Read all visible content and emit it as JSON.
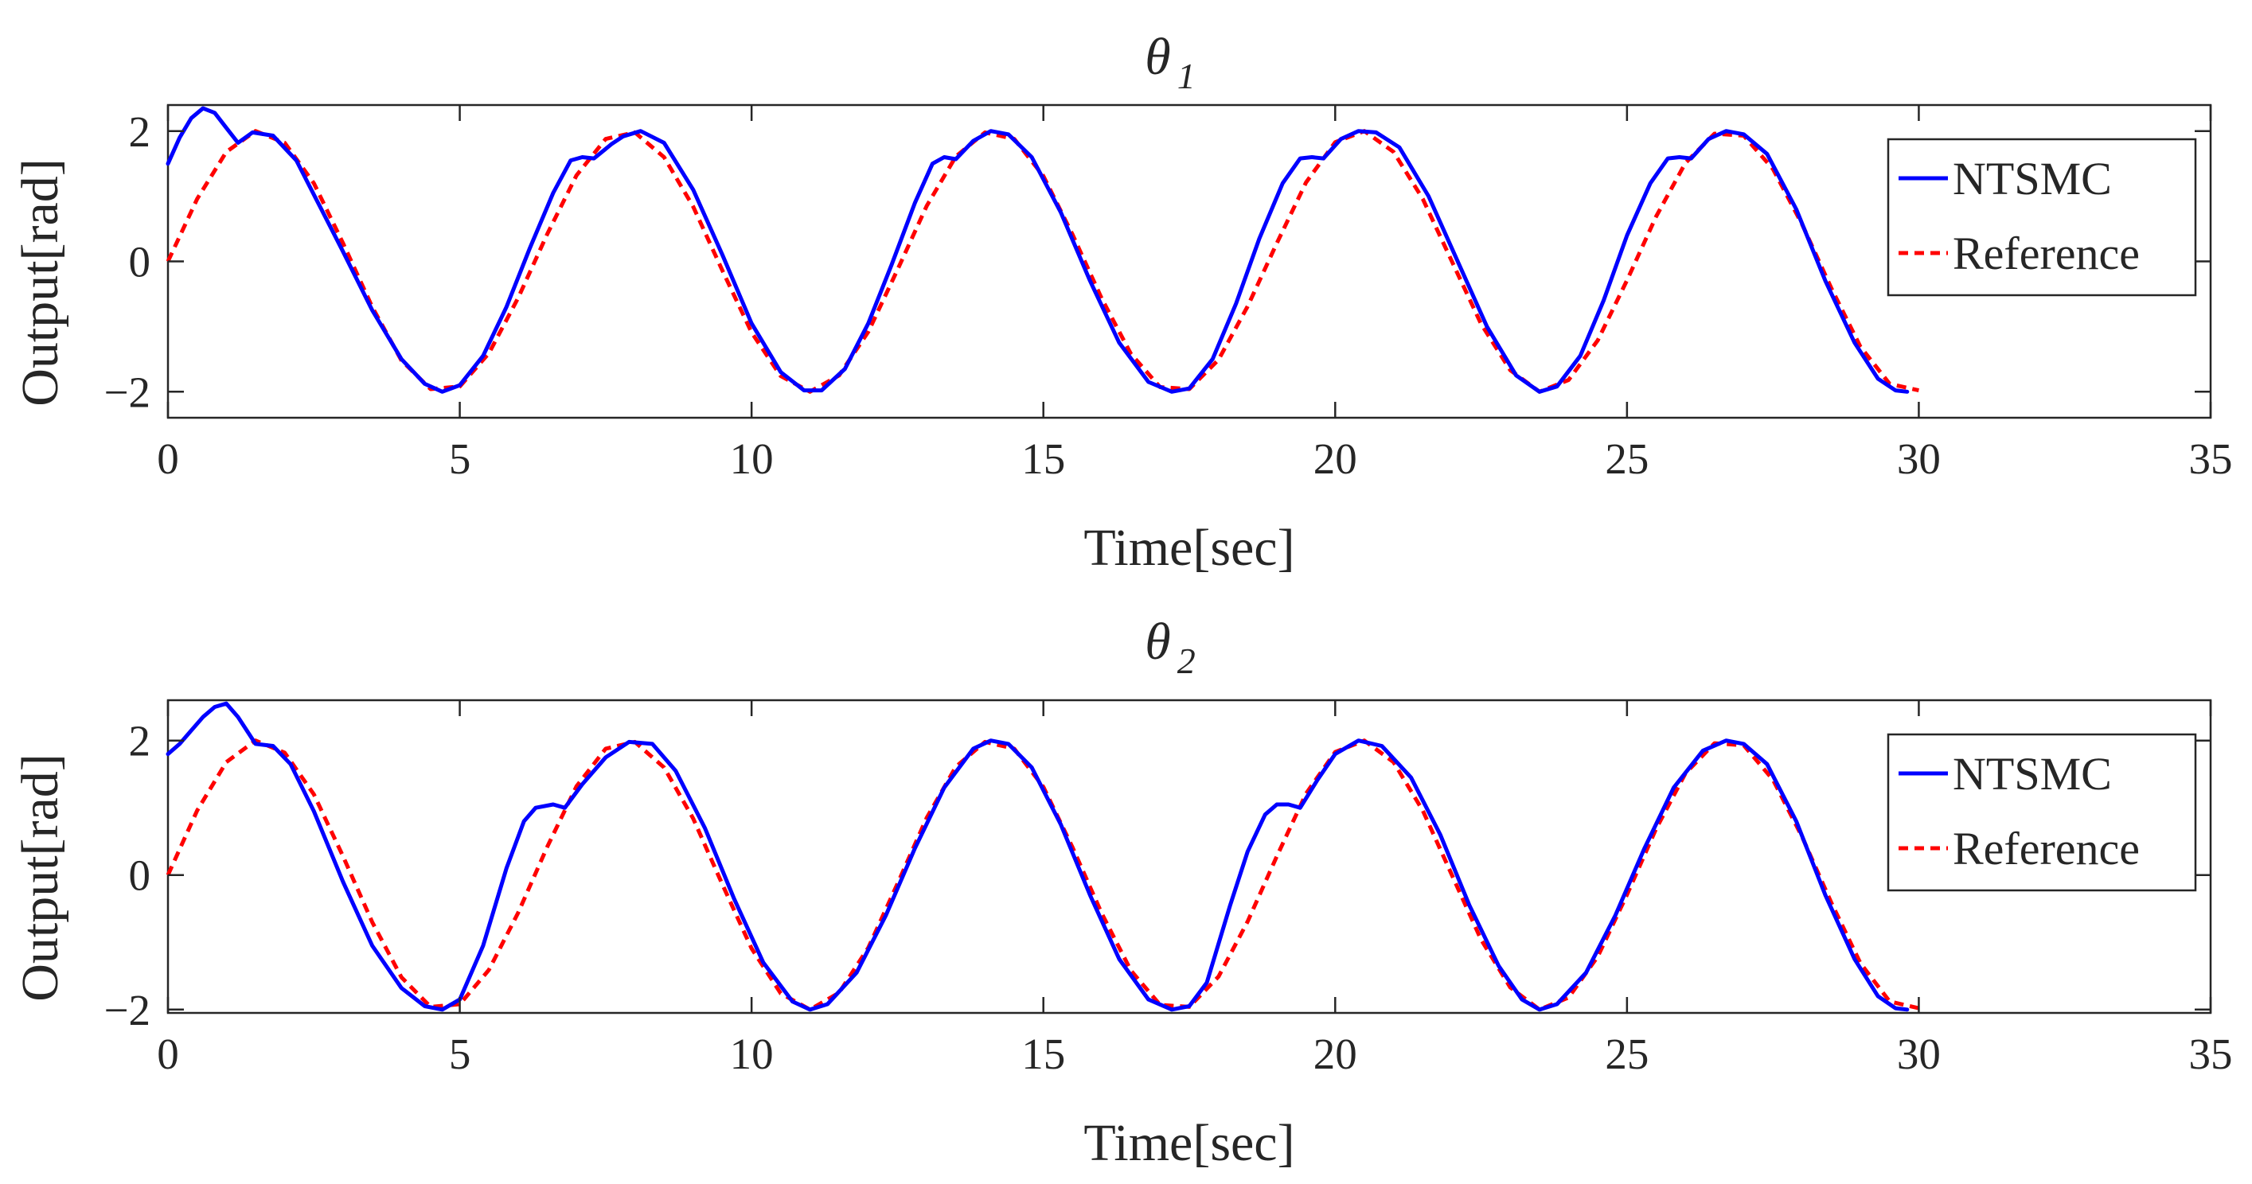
{
  "colors": {
    "ntsmc": "#0000ff",
    "reference": "#ff0000",
    "axes": "#262626"
  },
  "chart_data": [
    {
      "type": "line",
      "title": "θ",
      "title_subscript": "1",
      "xlabel": "Time[sec]",
      "ylabel": "Output[rad]",
      "xlim": [
        0,
        35
      ],
      "ylim": [
        -2.4,
        2.4
      ],
      "xticks": [
        0,
        5,
        10,
        15,
        20,
        25,
        30,
        35
      ],
      "xtick_labels": [
        "0",
        "5",
        "10",
        "15",
        "20",
        "25",
        "30",
        "35"
      ],
      "yticks": [
        -2,
        0,
        2
      ],
      "ytick_labels": [
        "−2",
        "0",
        "2"
      ],
      "grid": false,
      "legend": {
        "position": "top-right",
        "entries": [
          "NTSMC",
          "Reference"
        ]
      },
      "series": [
        {
          "name": "NTSMC",
          "style": "solid",
          "x": [
            0,
            0.2,
            0.4,
            0.6,
            0.8,
            1.0,
            1.2,
            1.45,
            1.8,
            2.2,
            2.6,
            3.0,
            3.5,
            4.0,
            4.4,
            4.7,
            5.0,
            5.4,
            5.8,
            6.2,
            6.6,
            6.9,
            7.1,
            7.3,
            7.6,
            7.8,
            8.1,
            8.5,
            9.0,
            9.5,
            10.0,
            10.5,
            10.9,
            11.2,
            11.6,
            12.0,
            12.4,
            12.8,
            13.1,
            13.3,
            13.5,
            13.8,
            14.1,
            14.4,
            14.8,
            15.3,
            15.8,
            16.3,
            16.8,
            17.2,
            17.5,
            17.9,
            18.3,
            18.7,
            19.1,
            19.4,
            19.6,
            19.8,
            20.1,
            20.4,
            20.7,
            21.1,
            21.6,
            22.1,
            22.6,
            23.1,
            23.5,
            23.8,
            24.2,
            24.6,
            25.0,
            25.4,
            25.7,
            25.9,
            26.1,
            26.4,
            26.7,
            27.0,
            27.4,
            27.9,
            28.4,
            28.9,
            29.3,
            29.6,
            29.8
          ],
          "y": [
            1.5,
            1.9,
            2.2,
            2.35,
            2.28,
            2.05,
            1.82,
            1.98,
            1.93,
            1.55,
            0.85,
            0.15,
            -0.75,
            -1.5,
            -1.88,
            -2.0,
            -1.9,
            -1.45,
            -0.7,
            0.2,
            1.05,
            1.55,
            1.6,
            1.58,
            1.8,
            1.92,
            2.0,
            1.82,
            1.1,
            0.1,
            -0.95,
            -1.7,
            -1.98,
            -1.98,
            -1.65,
            -0.95,
            -0.05,
            0.9,
            1.5,
            1.6,
            1.57,
            1.85,
            2.0,
            1.95,
            1.6,
            0.75,
            -0.3,
            -1.25,
            -1.85,
            -2.0,
            -1.95,
            -1.5,
            -0.65,
            0.35,
            1.2,
            1.58,
            1.6,
            1.58,
            1.88,
            2.0,
            1.98,
            1.75,
            1.0,
            0.0,
            -1.0,
            -1.75,
            -2.0,
            -1.92,
            -1.45,
            -0.6,
            0.4,
            1.2,
            1.58,
            1.6,
            1.58,
            1.88,
            2.0,
            1.95,
            1.65,
            0.8,
            -0.3,
            -1.25,
            -1.8,
            -1.98,
            -2.0
          ]
        },
        {
          "name": "Reference",
          "style": "dashed",
          "x": [
            0,
            0.5,
            1.0,
            1.5,
            2.0,
            2.5,
            3.0,
            3.5,
            4.0,
            4.5,
            5.0,
            5.5,
            6.0,
            6.5,
            7.0,
            7.5,
            8.0,
            8.5,
            9.0,
            9.5,
            10.0,
            10.5,
            11.0,
            11.5,
            12.0,
            12.5,
            13.0,
            13.5,
            14.0,
            14.5,
            15.0,
            15.5,
            16.0,
            16.5,
            17.0,
            17.5,
            18.0,
            18.5,
            19.0,
            19.5,
            20.0,
            20.5,
            21.0,
            21.5,
            22.0,
            22.5,
            23.0,
            23.5,
            24.0,
            24.5,
            25.0,
            25.5,
            26.0,
            26.5,
            27.0,
            27.5,
            28.0,
            28.5,
            29.0,
            29.5,
            30.0
          ],
          "y": [
            0.0,
            0.96,
            1.68,
            2.0,
            1.82,
            1.2,
            0.28,
            -0.7,
            -1.52,
            -1.96,
            -1.92,
            -1.41,
            -0.56,
            0.42,
            1.32,
            1.88,
            1.98,
            1.6,
            0.84,
            -0.14,
            -1.09,
            -1.76,
            -2.0,
            -1.75,
            -1.08,
            -0.13,
            0.85,
            1.61,
            1.98,
            1.88,
            1.31,
            0.41,
            -0.57,
            -1.42,
            -1.93,
            -1.96,
            -1.51,
            -0.69,
            0.28,
            1.21,
            1.83,
            2.0,
            1.68,
            0.96,
            0.0,
            -0.96,
            -1.67,
            -2.0,
            -1.82,
            -1.21,
            -0.29,
            0.69,
            1.51,
            1.96,
            1.93,
            1.42,
            0.57,
            -0.41,
            -1.31,
            -1.88,
            -1.98
          ]
        }
      ]
    },
    {
      "type": "line",
      "title": "θ",
      "title_subscript": "2",
      "xlabel": "Time[sec]",
      "ylabel": "Output[rad]",
      "xlim": [
        0,
        35
      ],
      "ylim": [
        -2.05,
        2.6
      ],
      "xticks": [
        0,
        5,
        10,
        15,
        20,
        25,
        30,
        35
      ],
      "xtick_labels": [
        "0",
        "5",
        "10",
        "15",
        "20",
        "25",
        "30",
        "35"
      ],
      "yticks": [
        -2,
        0,
        2
      ],
      "ytick_labels": [
        "−2",
        "0",
        "2"
      ],
      "grid": false,
      "legend": {
        "position": "top-right",
        "entries": [
          "NTSMC",
          "Reference"
        ]
      },
      "series": [
        {
          "name": "NTSMC",
          "style": "solid",
          "x": [
            0,
            0.2,
            0.4,
            0.6,
            0.8,
            1.0,
            1.2,
            1.5,
            1.8,
            2.1,
            2.5,
            3.0,
            3.5,
            4.0,
            4.4,
            4.7,
            5.0,
            5.4,
            5.8,
            6.1,
            6.3,
            6.6,
            6.8,
            7.1,
            7.5,
            7.9,
            8.3,
            8.7,
            9.2,
            9.7,
            10.2,
            10.7,
            11.0,
            11.3,
            11.8,
            12.3,
            12.8,
            13.3,
            13.8,
            14.1,
            14.4,
            14.8,
            15.3,
            15.8,
            16.3,
            16.8,
            17.2,
            17.5,
            17.8,
            18.2,
            18.5,
            18.8,
            19.0,
            19.2,
            19.4,
            19.7,
            20.0,
            20.4,
            20.8,
            21.3,
            21.8,
            22.3,
            22.8,
            23.2,
            23.5,
            23.8,
            24.3,
            24.8,
            25.3,
            25.8,
            26.3,
            26.7,
            27.0,
            27.4,
            27.9,
            28.4,
            28.9,
            29.3,
            29.6,
            29.8
          ],
          "y": [
            1.8,
            1.95,
            2.15,
            2.35,
            2.5,
            2.55,
            2.35,
            1.95,
            1.92,
            1.65,
            0.95,
            -0.1,
            -1.05,
            -1.68,
            -1.95,
            -2.0,
            -1.85,
            -1.05,
            0.1,
            0.8,
            1.0,
            1.05,
            1.0,
            1.35,
            1.75,
            1.98,
            1.95,
            1.55,
            0.7,
            -0.35,
            -1.3,
            -1.88,
            -2.0,
            -1.92,
            -1.45,
            -0.6,
            0.4,
            1.3,
            1.88,
            2.0,
            1.95,
            1.6,
            0.75,
            -0.3,
            -1.25,
            -1.85,
            -2.0,
            -1.95,
            -1.6,
            -0.45,
            0.35,
            0.9,
            1.05,
            1.05,
            1.0,
            1.42,
            1.8,
            2.0,
            1.92,
            1.45,
            0.6,
            -0.45,
            -1.35,
            -1.85,
            -2.0,
            -1.92,
            -1.45,
            -0.6,
            0.4,
            1.3,
            1.85,
            2.0,
            1.95,
            1.65,
            0.8,
            -0.3,
            -1.25,
            -1.8,
            -1.98,
            -2.0
          ]
        },
        {
          "name": "Reference",
          "style": "dashed",
          "x": [
            0,
            0.5,
            1.0,
            1.5,
            2.0,
            2.5,
            3.0,
            3.5,
            4.0,
            4.5,
            5.0,
            5.5,
            6.0,
            6.5,
            7.0,
            7.5,
            8.0,
            8.5,
            9.0,
            9.5,
            10.0,
            10.5,
            11.0,
            11.5,
            12.0,
            12.5,
            13.0,
            13.5,
            14.0,
            14.5,
            15.0,
            15.5,
            16.0,
            16.5,
            17.0,
            17.5,
            18.0,
            18.5,
            19.0,
            19.5,
            20.0,
            20.5,
            21.0,
            21.5,
            22.0,
            22.5,
            23.0,
            23.5,
            24.0,
            24.5,
            25.0,
            25.5,
            26.0,
            26.5,
            27.0,
            27.5,
            28.0,
            28.5,
            29.0,
            29.5,
            30.0
          ],
          "y": [
            0.0,
            0.96,
            1.68,
            2.0,
            1.82,
            1.2,
            0.28,
            -0.7,
            -1.52,
            -1.96,
            -1.92,
            -1.41,
            -0.56,
            0.42,
            1.32,
            1.88,
            1.98,
            1.6,
            0.84,
            -0.14,
            -1.09,
            -1.76,
            -2.0,
            -1.75,
            -1.08,
            -0.13,
            0.85,
            1.61,
            1.98,
            1.88,
            1.31,
            0.41,
            -0.57,
            -1.42,
            -1.93,
            -1.96,
            -1.51,
            -0.69,
            0.28,
            1.21,
            1.83,
            2.0,
            1.68,
            0.96,
            0.0,
            -0.96,
            -1.67,
            -2.0,
            -1.82,
            -1.21,
            -0.29,
            0.69,
            1.51,
            1.96,
            1.93,
            1.42,
            0.57,
            -0.41,
            -1.31,
            -1.88,
            -1.98
          ]
        }
      ]
    }
  ]
}
